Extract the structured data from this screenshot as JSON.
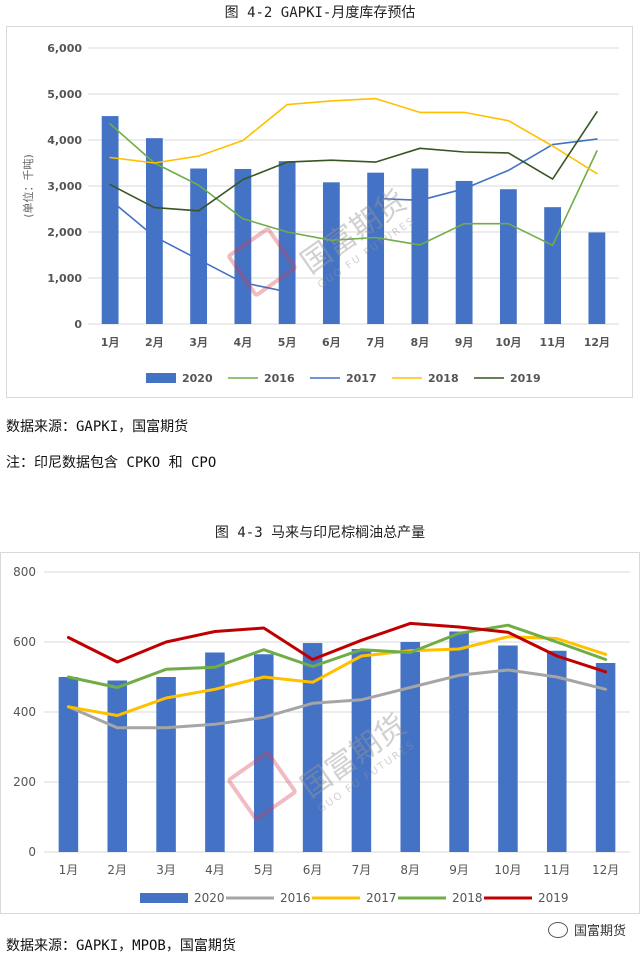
{
  "charts": [
    {
      "title": "图 4-2 GAPKI-月度库存预估",
      "chart_data": {
        "type": "bar",
        "title": "图 4-2 GAPKI-月度库存预估",
        "xlabel": "",
        "ylabel": "(单位：千吨)",
        "categories": [
          "1月",
          "2月",
          "3月",
          "4月",
          "5月",
          "6月",
          "7月",
          "8月",
          "9月",
          "10月",
          "11月",
          "12月"
        ],
        "ylim": [
          0,
          6000
        ],
        "yticks": [
          "0",
          "1,000",
          "2,000",
          "3,000",
          "4,000",
          "5,000",
          "6,000"
        ],
        "legend_position": "bottom",
        "grid": true,
        "series": [
          {
            "name": "2020",
            "kind": "bar",
            "color": "#4472C4",
            "values": [
              4520,
              4040,
              3380,
              3370,
              3540,
              3080,
              3290,
              3380,
              3110,
              2930,
              2540,
              1990
            ]
          },
          {
            "name": "2016",
            "kind": "line",
            "color": "#70AD47",
            "values": [
              4350,
              3500,
              3020,
              2290,
              2000,
              1820,
              1880,
              1720,
              2180,
              2180,
              1710,
              3760
            ]
          },
          {
            "name": "2017",
            "kind": "line",
            "color": "#4472C4",
            "values": [
              2700,
              1900,
              1400,
              900,
              700,
              null,
              2730,
              2690,
              2940,
              3340,
              3900,
              4020
            ]
          },
          {
            "name": "2018",
            "kind": "line",
            "color": "#FFC000",
            "values": [
              3620,
              3500,
              3650,
              3990,
              4770,
              4850,
              4900,
              4600,
              4600,
              4420,
              3870,
              3270
            ]
          },
          {
            "name": "2019",
            "kind": "line",
            "color": "#375623",
            "values": [
              3030,
              2530,
              2460,
              3140,
              3520,
              3560,
              3520,
              3820,
              3740,
              3720,
              3150,
              4610
            ]
          }
        ]
      }
    },
    {
      "title": "图 4-3 马来与印尼棕榈油总产量",
      "chart_data": {
        "type": "bar",
        "title": "图 4-3 马来与印尼棕榈油总产量",
        "xlabel": "",
        "ylabel": "",
        "categories": [
          "1月",
          "2月",
          "3月",
          "4月",
          "5月",
          "6月",
          "7月",
          "8月",
          "9月",
          "10月",
          "11月",
          "12月"
        ],
        "ylim": [
          0,
          800
        ],
        "yticks": [
          "0",
          "200",
          "400",
          "600",
          "800"
        ],
        "legend_position": "bottom",
        "grid": true,
        "series": [
          {
            "name": "2020",
            "kind": "bar",
            "color": "#4472C4",
            "values": [
              500,
              490,
              500,
              570,
              565,
              597,
              580,
              600,
              630,
              590,
              575,
              540
            ]
          },
          {
            "name": "2016",
            "kind": "line",
            "color": "#A5A5A5",
            "values": [
              415,
              355,
              355,
              365,
              385,
              425,
              435,
              470,
              505,
              520,
              500,
              465
            ]
          },
          {
            "name": "2017",
            "kind": "line",
            "color": "#FFC000",
            "values": [
              415,
              390,
              440,
              465,
              500,
              485,
              560,
              575,
              580,
              615,
              610,
              565
            ]
          },
          {
            "name": "2018",
            "kind": "line",
            "color": "#70AD47",
            "values": [
              500,
              470,
              522,
              528,
              578,
              530,
              578,
              570,
              625,
              648,
              600,
              550
            ]
          },
          {
            "name": "2019",
            "kind": "line",
            "color": "#C00000",
            "values": [
              613,
              543,
              600,
              630,
              640,
              550,
              605,
              653,
              643,
              628,
              560,
              515
            ]
          }
        ]
      }
    }
  ],
  "notes": {
    "source1": "数据来源：GAPKI，国富期货",
    "note1": "注：印尼数据包含 CPKO 和 CPO",
    "source2": "数据来源：GAPKI，MPOB，国富期货"
  },
  "watermark": {
    "text": "国富期货",
    "sub": "GUO FU FUTURES"
  },
  "wechat": {
    "label": "国富期货",
    "icon": "wechat-icon"
  }
}
